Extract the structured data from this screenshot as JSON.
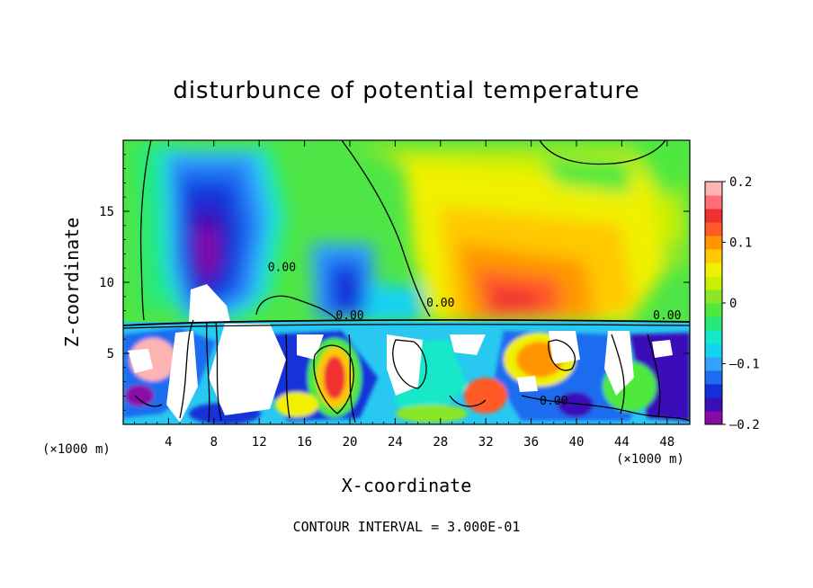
{
  "chart_data": {
    "type": "heatmap",
    "title": "disturbunce of potential temperature",
    "xlabel": "X-coordinate",
    "ylabel": "Z-coordinate",
    "x_unit": "(×1000 m)",
    "xlim": [
      0,
      50
    ],
    "ylim": [
      0,
      20
    ],
    "x_ticks": [
      "4",
      "8",
      "12",
      "16",
      "20",
      "24",
      "28",
      "32",
      "36",
      "40",
      "44",
      "48"
    ],
    "y_ticks": [
      "5",
      "10",
      "15"
    ],
    "colorbar": {
      "range": [
        -0.2,
        0.2
      ],
      "tick_labels": [
        "0.2",
        "0.1",
        "0",
        "–0.1",
        "–0.2"
      ],
      "colors": [
        "#8a0aa8",
        "#3a0fb8",
        "#1430d8",
        "#1e6cf0",
        "#33a2ff",
        "#14d2f0",
        "#14e8c8",
        "#28e878",
        "#50e83c",
        "#8ae628",
        "#c8f000",
        "#f0f000",
        "#ffc800",
        "#ff9600",
        "#ff5a28",
        "#f03030",
        "#ff6e78",
        "#ffb4b4"
      ]
    },
    "contour_labels": [
      "0.00",
      "0.00",
      "0.00",
      "0.00",
      "0.00"
    ],
    "contour_interval_note": "CONTOUR INTERVAL = 3.000E-01"
  }
}
